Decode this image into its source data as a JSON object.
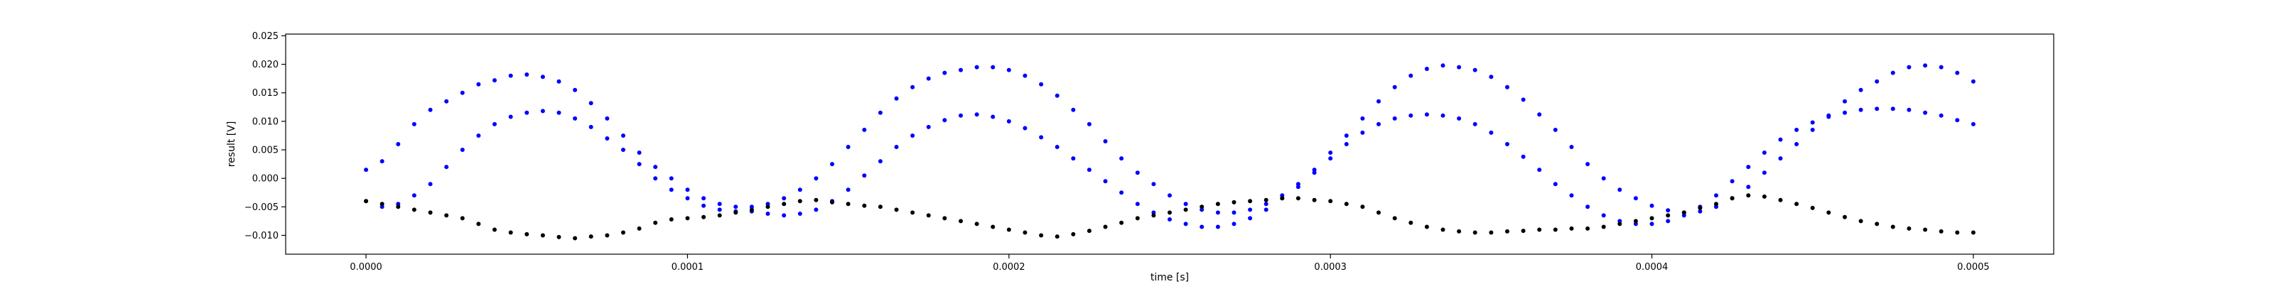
{
  "chart_data": {
    "type": "scatter",
    "xlabel": "time [s]",
    "ylabel": "result [V]",
    "xlim": [
      -2.5e-05,
      0.000525
    ],
    "ylim": [
      -0.0133,
      0.0253
    ],
    "xticks": [
      0.0,
      0.0001,
      0.0002,
      0.0003,
      0.0004,
      0.0005
    ],
    "xtick_labels": [
      "0.0000",
      "0.0001",
      "0.0002",
      "0.0003",
      "0.0004",
      "0.0005"
    ],
    "yticks": [
      -0.01,
      -0.005,
      0.0,
      0.005,
      0.01,
      0.015,
      0.02,
      0.025
    ],
    "ytick_labels": [
      "−0.010",
      "−0.005",
      "0.000",
      "0.005",
      "0.010",
      "0.015",
      "0.020",
      "0.025"
    ],
    "grid": false,
    "series": [
      {
        "color": "#0000ff",
        "marker": "point",
        "x": [
          0.0,
          5e-06,
          1e-05,
          1.5e-05,
          2e-05,
          2.5e-05,
          3e-05,
          3.5e-05,
          4e-05,
          4.5e-05,
          5e-05,
          5.5e-05,
          6e-05,
          6.5e-05,
          7e-05,
          7.5e-05,
          8e-05,
          8.5e-05,
          9e-05,
          9.5e-05,
          0.0001,
          0.000105,
          0.00011,
          0.000115,
          0.00012,
          0.000125,
          0.00013,
          0.000135,
          0.00014,
          0.000145,
          0.00015,
          0.000155,
          0.00016,
          0.000165,
          0.00017,
          0.000175,
          0.00018,
          0.000185,
          0.00019,
          0.000195,
          0.0002,
          0.000205,
          0.00021,
          0.000215,
          0.00022,
          0.000225,
          0.00023,
          0.000235,
          0.00024,
          0.000245,
          0.00025,
          0.000255,
          0.00026,
          0.000265,
          0.00027,
          0.000275,
          0.00028,
          0.000285,
          0.00029,
          0.000295,
          0.0003,
          0.000305,
          0.00031,
          0.000315,
          0.00032,
          0.000325,
          0.00033,
          0.000335,
          0.00034,
          0.000345,
          0.00035,
          0.000355,
          0.00036,
          0.000365,
          0.00037,
          0.000375,
          0.00038,
          0.000385,
          0.00039,
          0.000395,
          0.0004,
          0.000405,
          0.00041,
          0.000415,
          0.00042,
          0.000425,
          0.00043,
          0.000435,
          0.00044,
          0.000445,
          0.00045,
          0.000455,
          0.00046,
          0.000465,
          0.00047,
          0.000475,
          0.00048,
          0.000485,
          0.00049,
          0.000495,
          0.0005
        ],
        "y": [
          0.0015,
          0.003,
          0.006,
          0.0095,
          0.012,
          0.0135,
          0.015,
          0.0165,
          0.0172,
          0.018,
          0.0182,
          0.0178,
          0.017,
          0.0155,
          0.0132,
          0.0105,
          0.0075,
          0.0045,
          0.002,
          0.0,
          -0.002,
          -0.0035,
          -0.0045,
          -0.005,
          -0.005,
          -0.0045,
          -0.0035,
          -0.002,
          0.0,
          0.0025,
          0.0055,
          0.0085,
          0.0115,
          0.014,
          0.016,
          0.0175,
          0.0185,
          0.019,
          0.0195,
          0.0195,
          0.019,
          0.018,
          0.0165,
          0.0145,
          0.012,
          0.0095,
          0.0065,
          0.0035,
          0.001,
          -0.001,
          -0.003,
          -0.0045,
          -0.0055,
          -0.006,
          -0.006,
          -0.0055,
          -0.0045,
          -0.003,
          -0.001,
          0.0015,
          0.0045,
          0.0075,
          0.0105,
          0.0135,
          0.016,
          0.018,
          0.0192,
          0.0198,
          0.0195,
          0.019,
          0.0178,
          0.016,
          0.0138,
          0.0112,
          0.0085,
          0.0055,
          0.0025,
          0.0,
          -0.002,
          -0.0035,
          -0.0048,
          -0.0056,
          -0.006,
          -0.0058,
          -0.005,
          -0.0035,
          -0.0015,
          0.001,
          0.0035,
          0.006,
          0.0085,
          0.011,
          0.0135,
          0.0155,
          0.017,
          0.0185,
          0.0195,
          0.0198,
          0.0195,
          0.0185,
          0.017
        ]
      },
      {
        "color": "#0000ff",
        "marker": "point",
        "x": [
          0.0,
          5e-06,
          1e-05,
          1.5e-05,
          2e-05,
          2.5e-05,
          3e-05,
          3.5e-05,
          4e-05,
          4.5e-05,
          5e-05,
          5.5e-05,
          6e-05,
          6.5e-05,
          7e-05,
          7.5e-05,
          8e-05,
          8.5e-05,
          9e-05,
          9.5e-05,
          0.0001,
          0.000105,
          0.00011,
          0.000115,
          0.00012,
          0.000125,
          0.00013,
          0.000135,
          0.00014,
          0.000145,
          0.00015,
          0.000155,
          0.00016,
          0.000165,
          0.00017,
          0.000175,
          0.00018,
          0.000185,
          0.00019,
          0.000195,
          0.0002,
          0.000205,
          0.00021,
          0.000215,
          0.00022,
          0.000225,
          0.00023,
          0.000235,
          0.00024,
          0.000245,
          0.00025,
          0.000255,
          0.00026,
          0.000265,
          0.00027,
          0.000275,
          0.00028,
          0.000285,
          0.00029,
          0.000295,
          0.0003,
          0.000305,
          0.00031,
          0.000315,
          0.00032,
          0.000325,
          0.00033,
          0.000335,
          0.00034,
          0.000345,
          0.00035,
          0.000355,
          0.00036,
          0.000365,
          0.00037,
          0.000375,
          0.00038,
          0.000385,
          0.00039,
          0.000395,
          0.0004,
          0.000405,
          0.00041,
          0.000415,
          0.00042,
          0.000425,
          0.00043,
          0.000435,
          0.00044,
          0.000445,
          0.00045,
          0.000455,
          0.00046,
          0.000465,
          0.00047,
          0.000475,
          0.00048,
          0.000485,
          0.00049,
          0.000495,
          0.0005
        ],
        "y": [
          -0.004,
          -0.005,
          -0.0045,
          -0.003,
          -0.001,
          0.002,
          0.005,
          0.0075,
          0.0095,
          0.0108,
          0.0115,
          0.0118,
          0.0115,
          0.0105,
          0.009,
          0.007,
          0.005,
          0.0025,
          0.0,
          -0.002,
          -0.0035,
          -0.0048,
          -0.0055,
          -0.0058,
          -0.0058,
          -0.0062,
          -0.0065,
          -0.0062,
          -0.0055,
          -0.004,
          -0.002,
          0.0005,
          0.003,
          0.0055,
          0.0075,
          0.009,
          0.0102,
          0.011,
          0.0112,
          0.0108,
          0.01,
          0.0088,
          0.0072,
          0.0055,
          0.0035,
          0.0015,
          -0.0005,
          -0.0025,
          -0.0045,
          -0.006,
          -0.0072,
          -0.008,
          -0.0085,
          -0.0085,
          -0.008,
          -0.007,
          -0.0055,
          -0.0035,
          -0.0015,
          0.001,
          0.0035,
          0.006,
          0.008,
          0.0095,
          0.0105,
          0.011,
          0.0112,
          0.011,
          0.0105,
          0.0095,
          0.008,
          0.006,
          0.0038,
          0.0015,
          -0.001,
          -0.003,
          -0.005,
          -0.0065,
          -0.0075,
          -0.008,
          -0.008,
          -0.0075,
          -0.0065,
          -0.005,
          -0.003,
          -0.0005,
          0.002,
          0.0045,
          0.0068,
          0.0085,
          0.0098,
          0.0108,
          0.0115,
          0.012,
          0.0122,
          0.0122,
          0.012,
          0.0115,
          0.011,
          0.0102,
          0.0095
        ]
      },
      {
        "color": "#000000",
        "marker": "point",
        "x": [
          0.0,
          5e-06,
          1e-05,
          1.5e-05,
          2e-05,
          2.5e-05,
          3e-05,
          3.5e-05,
          4e-05,
          4.5e-05,
          5e-05,
          5.5e-05,
          6e-05,
          6.5e-05,
          7e-05,
          7.5e-05,
          8e-05,
          8.5e-05,
          9e-05,
          9.5e-05,
          0.0001,
          0.000105,
          0.00011,
          0.000115,
          0.00012,
          0.000125,
          0.00013,
          0.000135,
          0.00014,
          0.000145,
          0.00015,
          0.000155,
          0.00016,
          0.000165,
          0.00017,
          0.000175,
          0.00018,
          0.000185,
          0.00019,
          0.000195,
          0.0002,
          0.000205,
          0.00021,
          0.000215,
          0.00022,
          0.000225,
          0.00023,
          0.000235,
          0.00024,
          0.000245,
          0.00025,
          0.000255,
          0.00026,
          0.000265,
          0.00027,
          0.000275,
          0.00028,
          0.000285,
          0.00029,
          0.000295,
          0.0003,
          0.000305,
          0.00031,
          0.000315,
          0.00032,
          0.000325,
          0.00033,
          0.000335,
          0.00034,
          0.000345,
          0.00035,
          0.000355,
          0.00036,
          0.000365,
          0.00037,
          0.000375,
          0.00038,
          0.000385,
          0.00039,
          0.000395,
          0.0004,
          0.000405,
          0.00041,
          0.000415,
          0.00042,
          0.000425,
          0.00043,
          0.000435,
          0.00044,
          0.000445,
          0.00045,
          0.000455,
          0.00046,
          0.000465,
          0.00047,
          0.000475,
          0.00048,
          0.000485,
          0.00049,
          0.000495,
          0.0005
        ],
        "y": [
          -0.004,
          -0.0045,
          -0.005,
          -0.0055,
          -0.006,
          -0.0065,
          -0.007,
          -0.008,
          -0.009,
          -0.0095,
          -0.0098,
          -0.01,
          -0.0103,
          -0.0105,
          -0.0102,
          -0.01,
          -0.0095,
          -0.0088,
          -0.0078,
          -0.0072,
          -0.007,
          -0.0068,
          -0.0065,
          -0.006,
          -0.0055,
          -0.005,
          -0.0045,
          -0.004,
          -0.0038,
          -0.0042,
          -0.0045,
          -0.0048,
          -0.005,
          -0.0055,
          -0.006,
          -0.0065,
          -0.007,
          -0.0075,
          -0.008,
          -0.0085,
          -0.009,
          -0.0095,
          -0.01,
          -0.0102,
          -0.0098,
          -0.0092,
          -0.0085,
          -0.0078,
          -0.007,
          -0.0065,
          -0.006,
          -0.0055,
          -0.005,
          -0.0045,
          -0.0042,
          -0.004,
          -0.0038,
          -0.0035,
          -0.0035,
          -0.0038,
          -0.004,
          -0.0045,
          -0.005,
          -0.006,
          -0.007,
          -0.0078,
          -0.0085,
          -0.009,
          -0.0093,
          -0.0095,
          -0.0095,
          -0.0093,
          -0.0092,
          -0.009,
          -0.009,
          -0.0088,
          -0.0088,
          -0.0085,
          -0.008,
          -0.0075,
          -0.007,
          -0.0065,
          -0.006,
          -0.0052,
          -0.0045,
          -0.0035,
          -0.003,
          -0.0032,
          -0.0038,
          -0.0045,
          -0.0052,
          -0.006,
          -0.0068,
          -0.0075,
          -0.008,
          -0.0085,
          -0.0088,
          -0.009,
          -0.0093,
          -0.0095,
          -0.0095
        ]
      }
    ]
  }
}
